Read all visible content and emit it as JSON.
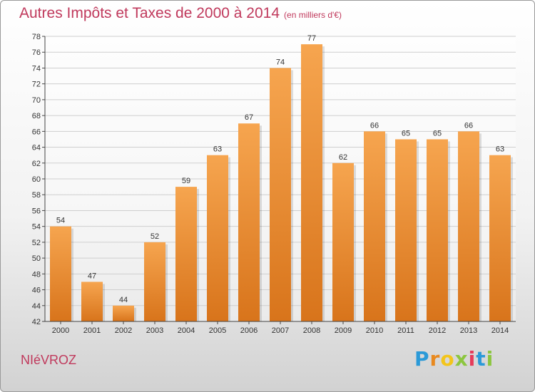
{
  "page": {
    "title": "Autres Impôts et Taxes de 2000 à 2014",
    "subtitle": "(en milliers d'€)",
    "commune": "NIéVROZ",
    "logo_letters": [
      "P",
      "r",
      "o",
      "x",
      "i",
      "t",
      "i"
    ]
  },
  "colors": {
    "bar_top": "#f6a54f",
    "bar_bottom": "#d8741b",
    "title": "#c0395c"
  },
  "chart_data": {
    "type": "bar",
    "title": "Autres Impôts et Taxes de 2000 à 2014",
    "subtitle": "(en milliers d'€)",
    "categories": [
      "2000",
      "2001",
      "2002",
      "2003",
      "2004",
      "2005",
      "2006",
      "2007",
      "2008",
      "2009",
      "2010",
      "2011",
      "2012",
      "2013",
      "2014"
    ],
    "values": [
      54,
      47,
      44,
      52,
      59,
      63,
      67,
      74,
      77,
      62,
      66,
      65,
      65,
      66,
      63
    ],
    "ylim": [
      42,
      78
    ],
    "yticks": [
      42,
      44,
      46,
      48,
      50,
      52,
      54,
      56,
      58,
      60,
      62,
      64,
      66,
      68,
      70,
      72,
      74,
      76,
      78
    ],
    "grid": true,
    "xlabel": "",
    "ylabel": ""
  }
}
